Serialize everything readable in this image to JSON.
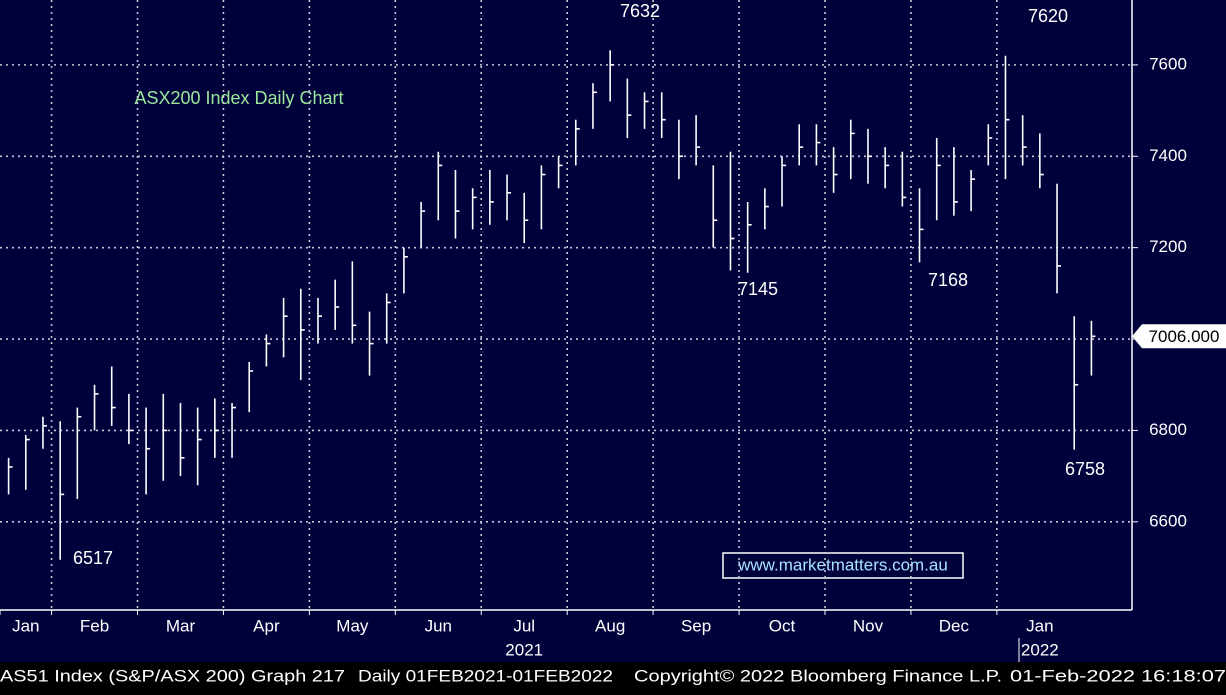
{
  "chart_data": {
    "type": "ohlc",
    "title": "ASX200 Index Daily Chart",
    "watermark": "www.marketmatters.com.au",
    "categories": [
      "Jan",
      null,
      null,
      "Feb",
      null,
      null,
      null,
      null,
      "Mar",
      null,
      null,
      null,
      null,
      "Apr",
      null,
      null,
      null,
      null,
      "May",
      null,
      null,
      null,
      null,
      "Jun",
      null,
      null,
      null,
      null,
      "Jul",
      null,
      null,
      null,
      null,
      "Aug",
      null,
      null,
      null,
      null,
      "Sep",
      null,
      null,
      null,
      null,
      "Oct",
      null,
      null,
      null,
      null,
      "Nov",
      null,
      null,
      null,
      null,
      "Dec",
      null,
      null,
      null,
      null,
      "Jan",
      null,
      null,
      null,
      null,
      null
    ],
    "x_group_labels": [
      "2021",
      "2022"
    ],
    "high": [
      6740,
      6790,
      6830,
      6820,
      6850,
      6900,
      6940,
      6880,
      6850,
      6880,
      6860,
      6850,
      6870,
      6860,
      6950,
      7010,
      7090,
      7110,
      7090,
      7130,
      7170,
      7060,
      7100,
      7200,
      7300,
      7410,
      7370,
      7330,
      7370,
      7360,
      7320,
      7380,
      7400,
      7480,
      7560,
      7632,
      7570,
      7540,
      7540,
      7480,
      7490,
      7380,
      7410,
      7300,
      7330,
      7400,
      7470,
      7470,
      7420,
      7480,
      7460,
      7420,
      7410,
      7330,
      7440,
      7420,
      7370,
      7470,
      7620,
      7490,
      7450,
      7340,
      7050,
      7040
    ],
    "low": [
      6660,
      6670,
      6760,
      6517,
      6650,
      6800,
      6810,
      6770,
      6660,
      6690,
      6700,
      6680,
      6740,
      6740,
      6840,
      6940,
      6960,
      6910,
      6990,
      7020,
      6990,
      6920,
      6990,
      7100,
      7200,
      7260,
      7220,
      7240,
      7250,
      7260,
      7210,
      7240,
      7330,
      7380,
      7460,
      7520,
      7440,
      7460,
      7440,
      7350,
      7380,
      7200,
      7150,
      7145,
      7240,
      7290,
      7380,
      7380,
      7320,
      7350,
      7340,
      7330,
      7290,
      7168,
      7260,
      7270,
      7280,
      7380,
      7350,
      7380,
      7330,
      7100,
      6758,
      6920
    ],
    "close": [
      6720,
      6780,
      6810,
      6660,
      6830,
      6880,
      6850,
      6800,
      6760,
      6800,
      6740,
      6780,
      6800,
      6850,
      6930,
      6990,
      7050,
      7020,
      7050,
      7070,
      7030,
      6990,
      7080,
      7180,
      7280,
      7380,
      7280,
      7310,
      7300,
      7320,
      7260,
      7360,
      7380,
      7460,
      7540,
      7600,
      7490,
      7520,
      7480,
      7400,
      7420,
      7260,
      7220,
      7250,
      7290,
      7380,
      7420,
      7430,
      7360,
      7450,
      7400,
      7380,
      7310,
      7240,
      7380,
      7300,
      7350,
      7440,
      7480,
      7420,
      7360,
      7160,
      6900,
      7006
    ],
    "last_value_label": "7006.000",
    "annotations": [
      "7632",
      "7620",
      "7145",
      "7168",
      "6517",
      "6758"
    ],
    "ylim": [
      6407,
      7742
    ],
    "yticks": [
      6600,
      6800,
      7000,
      7200,
      7400,
      7600
    ],
    "grid": true,
    "color": "#ffffff",
    "title_color": "#9be89b",
    "background": "#00003a",
    "footer": [
      "AS51 Index (S&P/ASX 200) Graph 217",
      "Daily 01FEB2021-01FEB2022",
      "Copyright© 2022 Bloomberg Finance L.P.",
      "01-Feb-2022 16:18:07"
    ]
  }
}
